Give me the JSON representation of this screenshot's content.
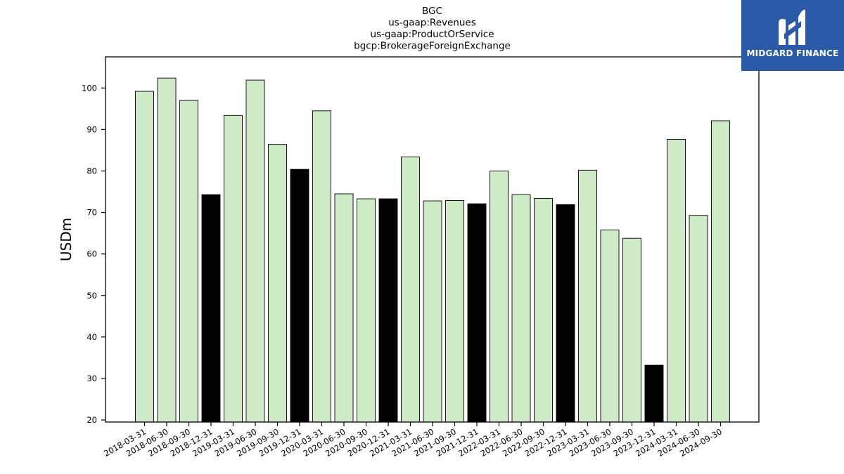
{
  "chart_data": {
    "type": "bar",
    "title_lines": [
      "BGC",
      "us-gaap:Revenues",
      "us-gaap:ProductOrService",
      "bgcp:BrokerageForeignExchange"
    ],
    "xlabel": "",
    "ylabel": "USDm",
    "ylim": [
      19.5,
      107.5
    ],
    "yticks": [
      20,
      30,
      40,
      50,
      60,
      70,
      80,
      90,
      100
    ],
    "categories": [
      "2018-03-31",
      "2018-06-30",
      "2018-09-30",
      "2018-12-31",
      "2019-03-31",
      "2019-06-30",
      "2019-09-30",
      "2019-12-31",
      "2020-03-31",
      "2020-06-30",
      "2020-09-30",
      "2020-12-31",
      "2021-03-31",
      "2021-06-30",
      "2021-09-30",
      "2021-12-31",
      "2022-03-31",
      "2022-06-30",
      "2022-09-30",
      "2022-12-31",
      "2023-03-31",
      "2023-06-30",
      "2023-09-30",
      "2023-12-31",
      "2024-03-31",
      "2024-06-30",
      "2024-09-30"
    ],
    "values": [
      99.2,
      102.4,
      97.0,
      74.3,
      93.4,
      101.9,
      86.4,
      80.4,
      94.5,
      74.5,
      73.3,
      73.3,
      83.4,
      72.8,
      72.9,
      72.1,
      80.0,
      74.3,
      73.4,
      71.9,
      80.2,
      65.8,
      63.8,
      33.2,
      87.6,
      69.3,
      92.1
    ],
    "colors": {
      "quarter": "#cfeac6",
      "year_end": "#000000",
      "edge": "#000000"
    },
    "grid": false,
    "legend": "none"
  },
  "logo": {
    "text": "MIDGARD FINANCE",
    "background": "#2b5aa9"
  }
}
